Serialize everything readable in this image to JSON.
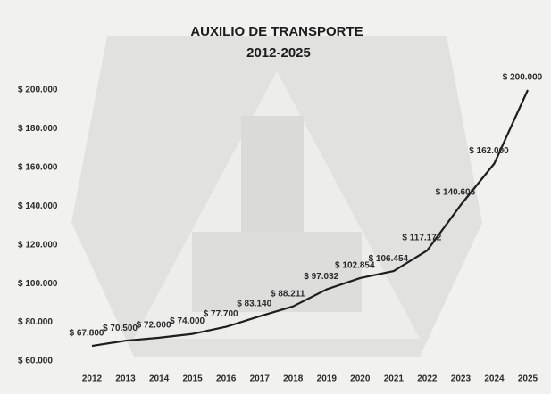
{
  "chart_data": {
    "type": "line",
    "title": "AUXILIO DE TRANSPORTE",
    "subtitle": "2012-2025",
    "categories": [
      "2012",
      "2013",
      "2014",
      "2015",
      "2016",
      "2017",
      "2018",
      "2019",
      "2020",
      "2021",
      "2022",
      "2023",
      "2024",
      "2025"
    ],
    "values": [
      67800,
      70500,
      72000,
      74000,
      77700,
      83140,
      88211,
      97032,
      102854,
      106454,
      117172,
      140606,
      162000,
      200000
    ],
    "value_labels": [
      "$ 67.800",
      "$ 70.500",
      "$ 72.000",
      "$ 74.000",
      "$ 77.700",
      "$ 83.140",
      "$ 88.211",
      "$ 97.032",
      "$ 102.854",
      "$ 106.454",
      "$ 117.172",
      "$ 140.606",
      "$ 162.000",
      "$ 200.000"
    ],
    "color": "#1e1e1e",
    "ylim": [
      60000,
      200000
    ],
    "yticks": [
      {
        "value": 60000,
        "label": "$ 60.000"
      },
      {
        "value": 80000,
        "label": "$ 80.000"
      },
      {
        "value": 100000,
        "label": "$ 100.000"
      },
      {
        "value": 120000,
        "label": "$ 120.000"
      },
      {
        "value": 140000,
        "label": "$ 140.000"
      },
      {
        "value": 160000,
        "label": "$ 160.000"
      },
      {
        "value": 180000,
        "label": "$ 180.000"
      },
      {
        "value": 200000,
        "label": "$ 200.000"
      }
    ],
    "grid": false
  }
}
